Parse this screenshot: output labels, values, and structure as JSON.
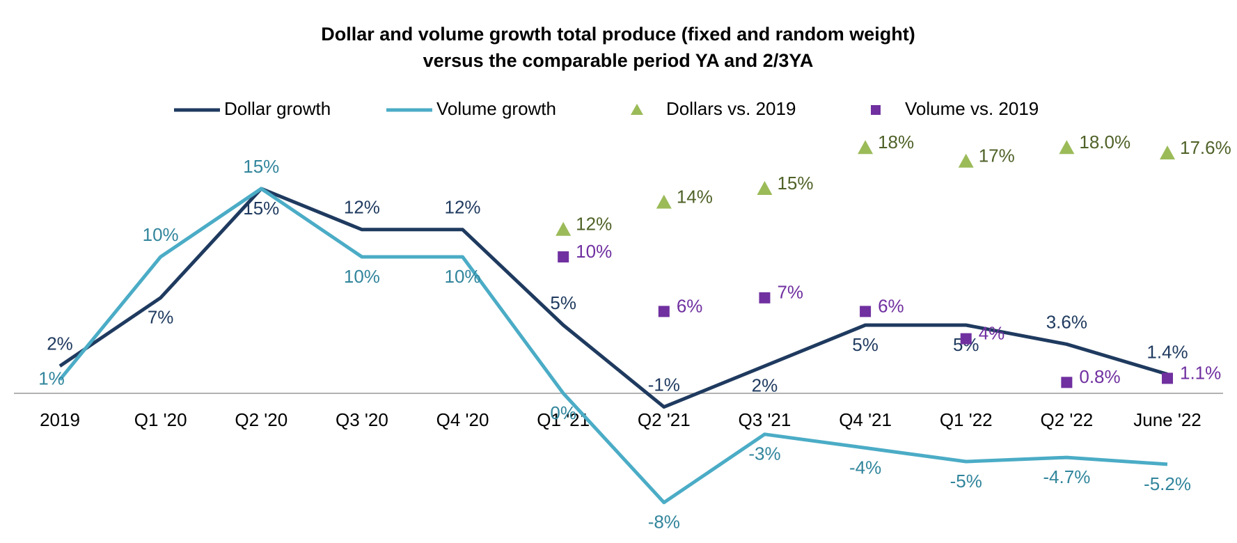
{
  "chart_data": {
    "type": "line",
    "title": "Dollar and volume growth total produce (fixed and random weight)",
    "subtitle": "versus the comparable period YA and 2/3YA",
    "categories": [
      "2019",
      "Q1 '20",
      "Q2 '20",
      "Q3 '20",
      "Q4 '20",
      "Q1 '21",
      "Q2 '21",
      "Q3 '21",
      "Q4 '21",
      "Q1 '22",
      "Q2 '22",
      "June '22"
    ],
    "ylim": [
      -10,
      20
    ],
    "series": [
      {
        "name": "Dollar growth",
        "type": "line",
        "color": "#1f3a5f",
        "label_color": "#1f3a5f",
        "values": [
          2,
          7,
          15,
          12,
          12,
          5,
          -1,
          2,
          5,
          5,
          3.6,
          1.4
        ],
        "value_labels": [
          "2%",
          "7%",
          "15%",
          "12%",
          "12%",
          "5%",
          "-1%",
          "2%",
          "5%",
          "5%",
          "3.6%",
          "1.4%"
        ]
      },
      {
        "name": "Volume growth",
        "type": "line",
        "color": "#4bacc6",
        "label_color": "#31859c",
        "values": [
          1,
          10,
          15,
          10,
          10,
          0,
          -8,
          -3,
          -4,
          -5,
          -4.7,
          -5.2
        ],
        "value_labels": [
          "1%",
          "10%",
          "15%",
          "10%",
          "10%",
          "0%",
          "-8%",
          "-3%",
          "-4%",
          "-5%",
          "-4.7%",
          "-5.2%"
        ]
      },
      {
        "name": "Dollars vs. 2019",
        "type": "scatter",
        "marker": "triangle",
        "color": "#9bbb59",
        "label_color": "#4f6228",
        "values": [
          null,
          null,
          null,
          null,
          null,
          12,
          14,
          15,
          18,
          17,
          18.0,
          17.6
        ],
        "value_labels": [
          null,
          null,
          null,
          null,
          null,
          "12%",
          "14%",
          "15%",
          "18%",
          "17%",
          "18.0%",
          "17.6%"
        ]
      },
      {
        "name": "Volume vs. 2019",
        "type": "scatter",
        "marker": "square",
        "color": "#7030a0",
        "label_color": "#7030a0",
        "values": [
          null,
          null,
          null,
          null,
          null,
          10,
          6,
          7,
          6,
          4,
          0.8,
          1.1
        ],
        "value_labels": [
          null,
          null,
          null,
          null,
          null,
          "10%",
          "6%",
          "7%",
          "6%",
          "4%",
          "0.8%",
          "1.1%"
        ]
      }
    ]
  }
}
